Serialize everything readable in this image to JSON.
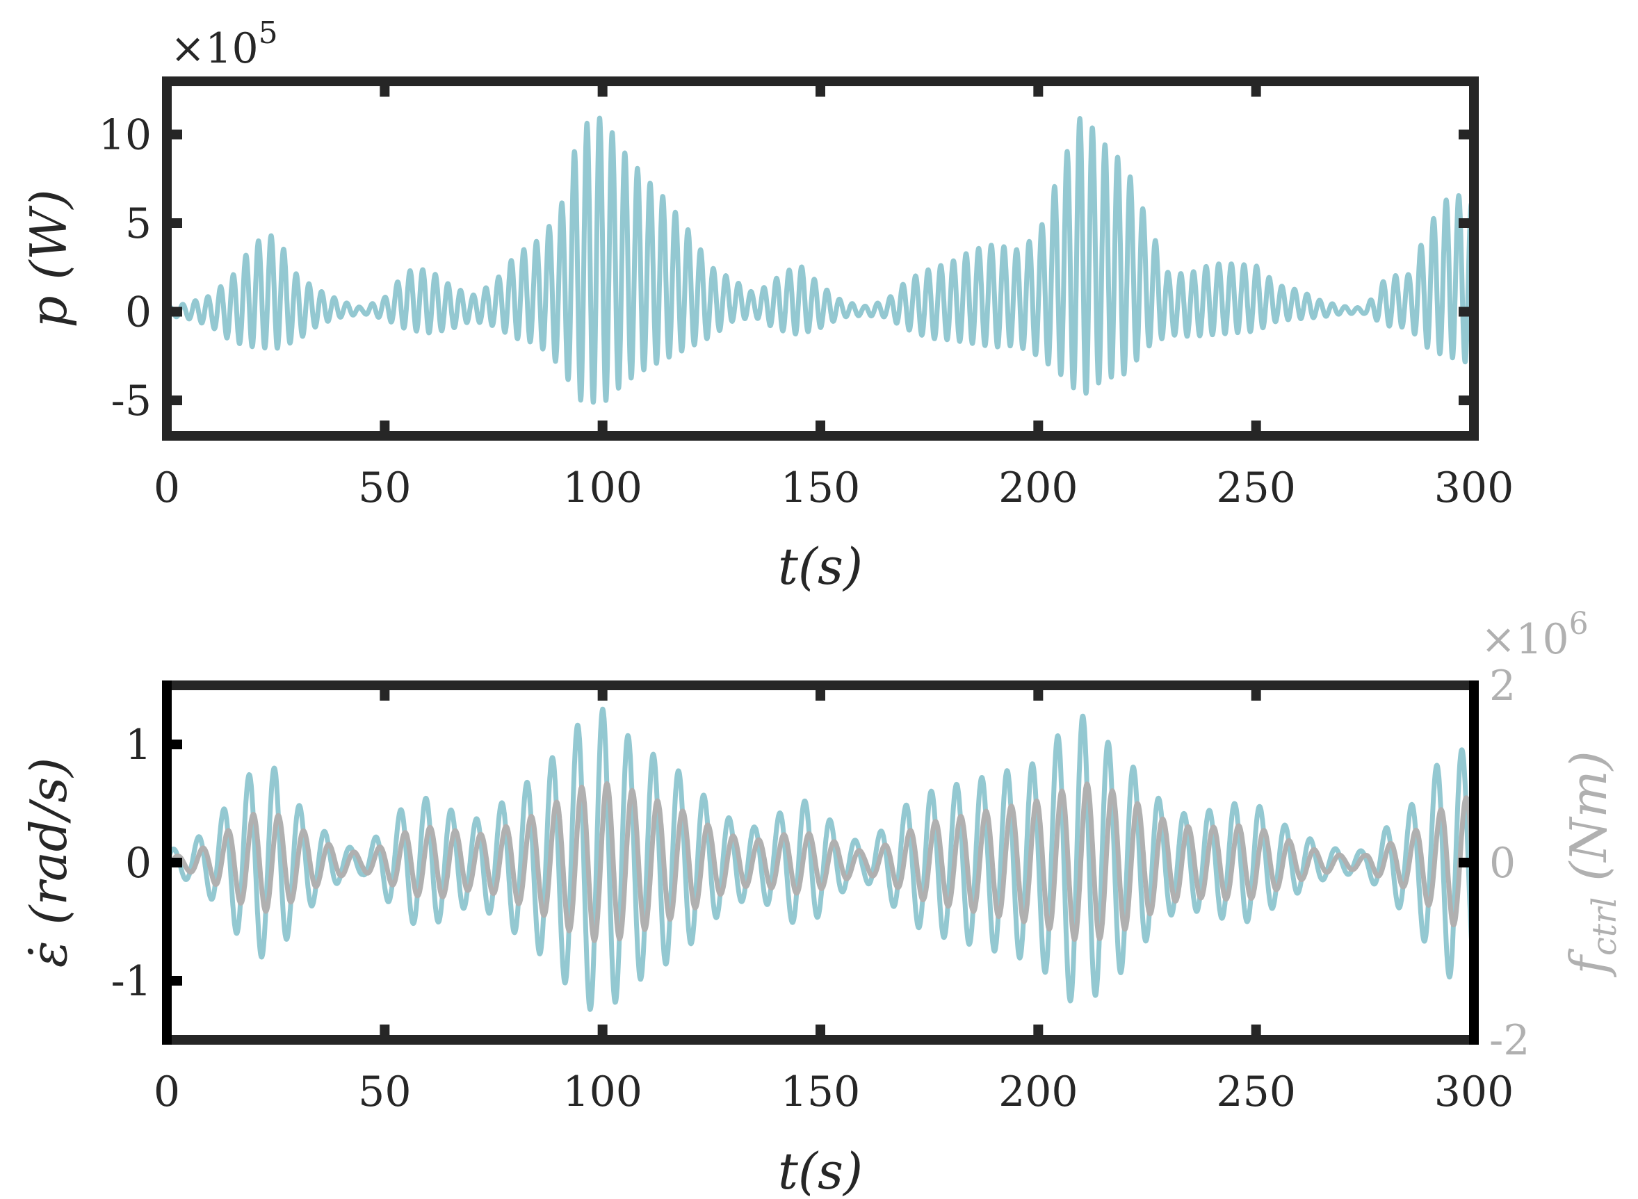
{
  "colors": {
    "primary_series": "#93c8d1",
    "secondary_series": "#b0b0b0",
    "axis": "#262626",
    "secondary_axis_text": "#b0b0b0",
    "left_axis_bottom_panel": "#000000"
  },
  "chart_data": [
    {
      "type": "line",
      "panel": "top",
      "xlabel": "t(s)",
      "ylabel": "p (W)",
      "xlim": [
        0,
        300
      ],
      "ylim": [
        -7,
        13
      ],
      "xticks": [
        0,
        50,
        100,
        150,
        200,
        250,
        300
      ],
      "yticks": [
        -5,
        0,
        5,
        10
      ],
      "y_multiplier": "×10",
      "y_multiplier_exp": "5",
      "grid": false,
      "legend": "none",
      "series": [
        {
          "color": "#93c8d1",
          "period_s": 2.9,
          "envelope": {
            "t": [
              0,
              5,
              10,
              15,
              20,
              25,
              30,
              35,
              40,
              45,
              50,
              55,
              60,
              65,
              70,
              75,
              80,
              85,
              90,
              95,
              100,
              105,
              110,
              115,
              120,
              125,
              130,
              135,
              140,
              145,
              150,
              155,
              160,
              165,
              170,
              175,
              180,
              185,
              190,
              195,
              200,
              205,
              210,
              215,
              220,
              225,
              230,
              235,
              240,
              245,
              250,
              255,
              260,
              265,
              270,
              275,
              280,
              285,
              290,
              295,
              300
            ],
            "max": [
              0.2,
              0.5,
              0.9,
              2.0,
              3.9,
              4.4,
              2.0,
              1.2,
              0.6,
              0.2,
              0.8,
              2.3,
              2.4,
              1.5,
              0.9,
              1.6,
              3.2,
              4.0,
              5.5,
              10.5,
              11.0,
              9.0,
              7.5,
              6.2,
              4.5,
              2.5,
              1.8,
              1.0,
              1.9,
              2.7,
              1.5,
              0.6,
              0.3,
              0.6,
              1.8,
              2.4,
              2.8,
              3.5,
              3.8,
              3.5,
              4.3,
              8.0,
              11.2,
              9.5,
              8.3,
              5.2,
              2.1,
              2.2,
              2.7,
              2.7,
              2.6,
              1.5,
              1.2,
              0.6,
              0.3,
              0.2,
              2.0,
              2.1,
              5.0,
              6.8,
              6.0
            ],
            "min": [
              -0.2,
              -0.4,
              -0.8,
              -1.7,
              -2.0,
              -2.1,
              -1.6,
              -0.7,
              -0.3,
              -0.1,
              -0.4,
              -1.0,
              -1.2,
              -1.0,
              -0.5,
              -0.8,
              -1.5,
              -1.8,
              -3.0,
              -5.0,
              -5.2,
              -4.0,
              -3.2,
              -2.6,
              -2.0,
              -1.4,
              -0.5,
              -0.3,
              -1.0,
              -1.3,
              -0.9,
              -0.3,
              -0.2,
              -0.3,
              -1.0,
              -1.5,
              -1.6,
              -1.8,
              -2.0,
              -1.9,
              -2.5,
              -3.5,
              -4.8,
              -3.8,
              -3.5,
              -2.0,
              -1.3,
              -1.4,
              -1.3,
              -1.2,
              -1.1,
              -0.5,
              -0.4,
              -0.3,
              -0.1,
              -0.1,
              -0.8,
              -0.9,
              -2.2,
              -2.6,
              -3.0
            ]
          }
        }
      ]
    },
    {
      "type": "line",
      "panel": "bottom",
      "xlabel": "t(s)",
      "ylabel_left": "ε̇ (rad/s)",
      "ylabel_right": "f",
      "ylabel_right_sub": "ctrl",
      "ylabel_right_unit": "(Nm)",
      "xlim": [
        0,
        300
      ],
      "ylim_left": [
        -1.5,
        1.5
      ],
      "ylim_right": [
        -2,
        2
      ],
      "xticks": [
        0,
        50,
        100,
        150,
        200,
        250,
        300
      ],
      "yticks_left": [
        -1,
        0,
        1
      ],
      "yticks_right": [
        -2,
        0,
        2
      ],
      "y_right_multiplier": "×10",
      "y_right_multiplier_exp": "6",
      "grid": false,
      "legend": "none",
      "series": [
        {
          "axis": "left",
          "color": "#93c8d1",
          "period_s": 5.8,
          "envelope": {
            "t": [
              0,
              5,
              10,
              15,
              20,
              25,
              30,
              35,
              40,
              45,
              50,
              55,
              60,
              65,
              70,
              75,
              80,
              85,
              90,
              95,
              100,
              105,
              110,
              115,
              120,
              125,
              130,
              135,
              140,
              145,
              150,
              155,
              160,
              165,
              170,
              175,
              180,
              185,
              190,
              195,
              200,
              205,
              210,
              215,
              220,
              225,
              230,
              235,
              240,
              245,
              250,
              255,
              260,
              265,
              270,
              275,
              280,
              285,
              290,
              295,
              300
            ],
            "amp": [
              0.1,
              0.15,
              0.3,
              0.55,
              0.8,
              0.8,
              0.5,
              0.3,
              0.15,
              0.1,
              0.3,
              0.5,
              0.55,
              0.45,
              0.35,
              0.45,
              0.6,
              0.75,
              0.95,
              1.2,
              1.3,
              1.1,
              0.95,
              0.85,
              0.7,
              0.5,
              0.35,
              0.3,
              0.4,
              0.55,
              0.45,
              0.25,
              0.15,
              0.3,
              0.5,
              0.6,
              0.65,
              0.7,
              0.75,
              0.8,
              0.85,
              1.1,
              1.25,
              1.05,
              0.9,
              0.65,
              0.45,
              0.4,
              0.45,
              0.5,
              0.5,
              0.35,
              0.25,
              0.15,
              0.1,
              0.1,
              0.3,
              0.45,
              0.75,
              1.0,
              0.9
            ]
          }
        },
        {
          "axis": "right",
          "color": "#b0b0b0",
          "period_s": 5.8,
          "envelope": {
            "t": [
              0,
              5,
              10,
              15,
              20,
              25,
              30,
              35,
              40,
              45,
              50,
              55,
              60,
              65,
              70,
              75,
              80,
              85,
              90,
              95,
              100,
              105,
              110,
              115,
              120,
              125,
              130,
              135,
              140,
              145,
              150,
              155,
              160,
              165,
              170,
              175,
              180,
              185,
              190,
              195,
              200,
              205,
              210,
              215,
              220,
              225,
              230,
              235,
              240,
              245,
              250,
              255,
              260,
              265,
              270,
              275,
              280,
              285,
              290,
              295,
              300
            ],
            "amp": [
              0.05,
              0.1,
              0.2,
              0.4,
              0.55,
              0.55,
              0.4,
              0.25,
              0.15,
              0.1,
              0.2,
              0.35,
              0.4,
              0.38,
              0.3,
              0.35,
              0.45,
              0.55,
              0.7,
              0.85,
              0.9,
              0.85,
              0.75,
              0.65,
              0.55,
              0.4,
              0.3,
              0.25,
              0.3,
              0.35,
              0.3,
              0.2,
              0.12,
              0.2,
              0.35,
              0.45,
              0.5,
              0.55,
              0.6,
              0.65,
              0.7,
              0.8,
              0.9,
              0.85,
              0.75,
              0.6,
              0.45,
              0.4,
              0.4,
              0.42,
              0.4,
              0.3,
              0.2,
              0.12,
              0.08,
              0.08,
              0.2,
              0.3,
              0.5,
              0.7,
              0.75
            ]
          }
        }
      ]
    }
  ]
}
